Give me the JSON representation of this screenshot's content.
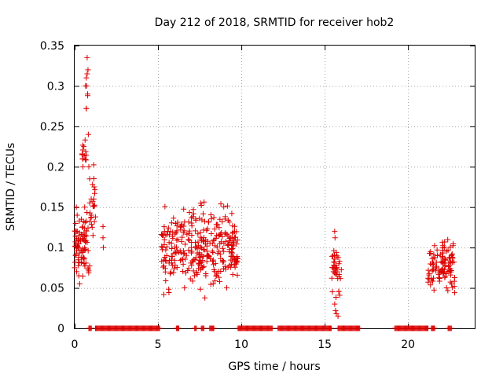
{
  "chart_data": {
    "type": "scatter",
    "title": "Day 212 of 2018, SRMTID for receiver hob2",
    "xlabel": "GPS time / hours",
    "ylabel": "SRMTID / TECUs",
    "xlim": [
      0,
      24
    ],
    "ylim": [
      0,
      0.35
    ],
    "xticks": [
      0,
      5,
      10,
      15,
      20
    ],
    "yticks": [
      0,
      0.05,
      0.1,
      0.15,
      0.2,
      0.25,
      0.3,
      0.35
    ],
    "xtick_labels": [
      "0",
      "5",
      "10",
      "15",
      "20"
    ],
    "ytick_labels": [
      "0",
      "0.05",
      "0.1",
      "0.15",
      "0.2",
      "0.25",
      "0.3",
      "0.35"
    ],
    "grid": true,
    "marker": "+",
    "series_color": "#dd0000",
    "clusters": [
      {
        "x_range": [
          0.0,
          0.9
        ],
        "y_range": [
          0.05,
          0.155
        ],
        "count": 75
      },
      {
        "x_range": [
          0.45,
          0.7
        ],
        "y_range": [
          0.19,
          0.235
        ],
        "count": 12
      },
      {
        "x_range": [
          0.9,
          1.3
        ],
        "y_range": [
          0.1,
          0.22
        ],
        "count": 20
      },
      {
        "x_range": [
          5.2,
          9.8
        ],
        "y_range": [
          0.03,
          0.17
        ],
        "count": 330
      },
      {
        "x_range": [
          15.4,
          16.0
        ],
        "y_range": [
          0.015,
          0.12
        ],
        "count": 30
      },
      {
        "x_range": [
          21.2,
          22.8
        ],
        "y_range": [
          0.03,
          0.125
        ],
        "count": 110
      }
    ],
    "points": [
      {
        "x": 0.0,
        "y": 0.075
      },
      {
        "x": 0.05,
        "y": 0.09
      },
      {
        "x": 0.1,
        "y": 0.15
      },
      {
        "x": 0.1,
        "y": 0.12
      },
      {
        "x": 0.15,
        "y": 0.14
      },
      {
        "x": 0.2,
        "y": 0.1
      },
      {
        "x": 0.25,
        "y": 0.065
      },
      {
        "x": 0.3,
        "y": 0.055
      },
      {
        "x": 0.35,
        "y": 0.11
      },
      {
        "x": 0.4,
        "y": 0.135
      },
      {
        "x": 0.45,
        "y": 0.125
      },
      {
        "x": 0.5,
        "y": 0.2
      },
      {
        "x": 0.55,
        "y": 0.225
      },
      {
        "x": 0.6,
        "y": 0.15
      },
      {
        "x": 0.65,
        "y": 0.3
      },
      {
        "x": 0.7,
        "y": 0.31
      },
      {
        "x": 0.7,
        "y": 0.272
      },
      {
        "x": 0.75,
        "y": 0.315
      },
      {
        "x": 0.78,
        "y": 0.29
      },
      {
        "x": 0.82,
        "y": 0.24
      },
      {
        "x": 0.85,
        "y": 0.2
      },
      {
        "x": 0.9,
        "y": 0.185
      },
      {
        "x": 1.0,
        "y": 0.14
      },
      {
        "x": 1.05,
        "y": 0.125
      },
      {
        "x": 1.1,
        "y": 0.115
      },
      {
        "x": 1.15,
        "y": 0.16
      },
      {
        "x": 0.75,
        "y": 0.335
      },
      {
        "x": 0.8,
        "y": 0.32
      },
      {
        "x": 0.72,
        "y": 0.3
      },
      {
        "x": 0.78,
        "y": 0.288
      },
      {
        "x": 0.7,
        "y": 0.272
      },
      {
        "x": 1.7,
        "y": 0.126
      },
      {
        "x": 1.7,
        "y": 0.112
      },
      {
        "x": 1.72,
        "y": 0.1
      },
      {
        "x": 15.6,
        "y": 0.12
      },
      {
        "x": 15.62,
        "y": 0.112
      },
      {
        "x": 15.55,
        "y": 0.096
      },
      {
        "x": 15.7,
        "y": 0.094
      },
      {
        "x": 15.8,
        "y": 0.088
      },
      {
        "x": 15.65,
        "y": 0.074
      },
      {
        "x": 15.75,
        "y": 0.07
      },
      {
        "x": 15.85,
        "y": 0.08
      },
      {
        "x": 15.9,
        "y": 0.041
      },
      {
        "x": 15.6,
        "y": 0.03
      },
      {
        "x": 15.65,
        "y": 0.022
      },
      {
        "x": 15.7,
        "y": 0.018
      },
      {
        "x": 15.8,
        "y": 0.015
      }
    ],
    "zero_segments": [
      [
        0.85,
        1.0
      ],
      [
        1.25,
        5.1
      ],
      [
        6.1,
        6.25
      ],
      [
        7.2,
        7.3
      ],
      [
        7.6,
        7.75
      ],
      [
        8.1,
        8.35
      ],
      [
        9.8,
        11.85
      ],
      [
        12.2,
        15.4
      ],
      [
        15.8,
        17.1
      ],
      [
        19.2,
        21.2
      ],
      [
        21.4,
        21.6
      ],
      [
        22.4,
        22.6
      ]
    ]
  }
}
